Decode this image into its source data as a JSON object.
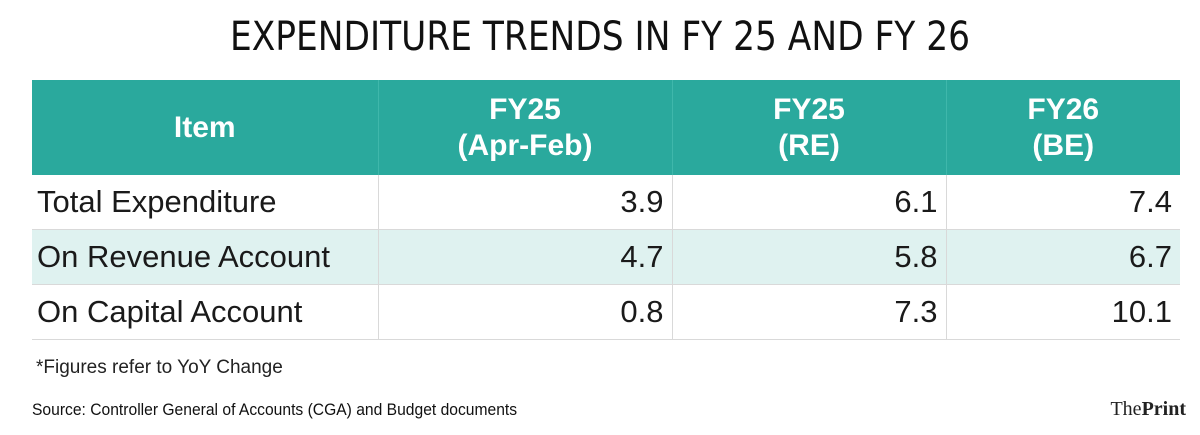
{
  "title": "EXPENDITURE TRENDS IN FY 25 AND FY 26",
  "chart_data": {
    "type": "table",
    "title": "EXPENDITURE TRENDS IN FY 25 AND FY 26",
    "columns": [
      {
        "label": "Item"
      },
      {
        "label_line1": "FY25",
        "label_line2": "(Apr-Feb)"
      },
      {
        "label_line1": "FY25",
        "label_line2": "(RE)"
      },
      {
        "label_line1": "FY26",
        "label_line2": "(BE)"
      }
    ],
    "rows": [
      {
        "item": "Total Expenditure",
        "values": [
          "3.9",
          "6.1",
          "7.4"
        ]
      },
      {
        "item": "On Revenue Account",
        "values": [
          "4.7",
          "5.8",
          "6.7"
        ]
      },
      {
        "item": "On Capital Account",
        "values": [
          "0.8",
          "7.3",
          "10.1"
        ]
      }
    ]
  },
  "footnote": "*Figures refer to YoY Change",
  "source": "Source: Controller General of Accounts (CGA) and Budget documents",
  "brand": {
    "part1": "The",
    "part2": "Print"
  },
  "colors": {
    "header_bg": "#2aa99d",
    "header_text": "#ffffff",
    "alt_row_bg": "#dff2f0"
  }
}
